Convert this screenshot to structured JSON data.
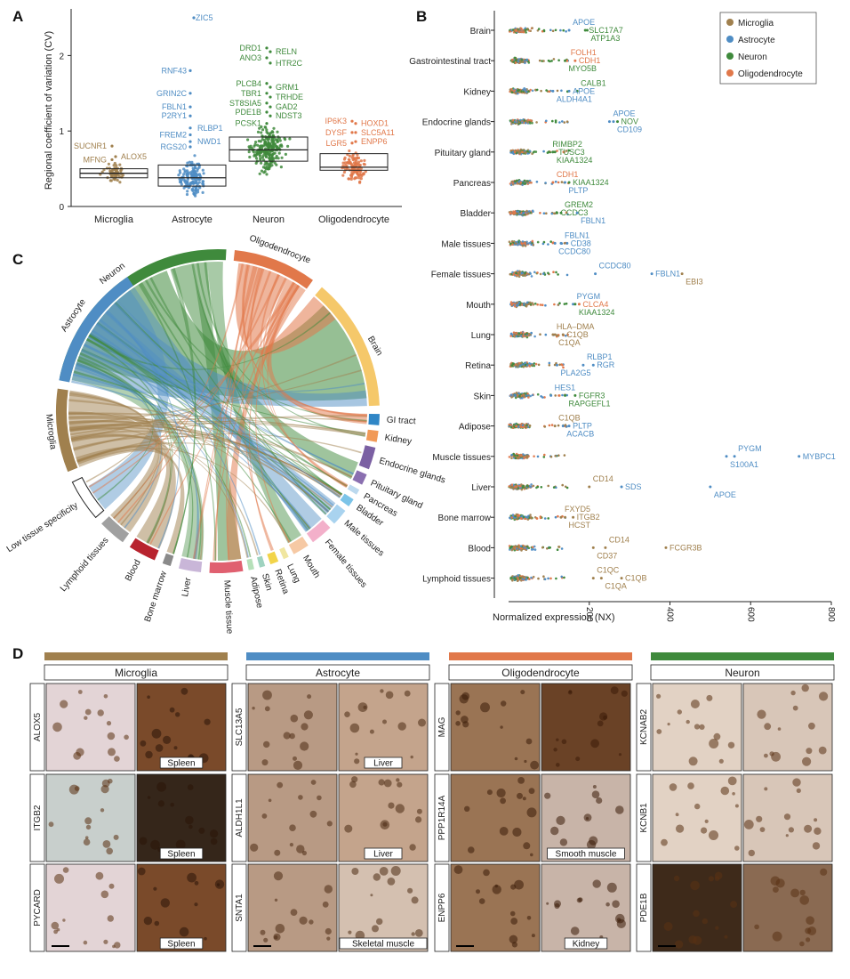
{
  "colors": {
    "Microglia": "#a0804e",
    "Astrocyte": "#4f8dc4",
    "Neuron": "#3f8a3c",
    "Oligodendrocyte": "#e1784a",
    "Brain": "#f5c86a",
    "GI tract": "#2f86c6",
    "Kidney": "#f19a58",
    "Endocrine glands": "#7b60a3",
    "Pituitary gland": "#8a6fb0",
    "Pancreas": "#bcd9ee",
    "Bladder": "#7cc4e8",
    "Male tissues": "#a9d3ef",
    "Female tissues": "#f3b0ca",
    "Mouth": "#f6c9a4",
    "Lung": "#f0e6a0",
    "Retina": "#f2d44a",
    "Skin": "#9fd3c0",
    "Adipose": "#b6e0b9",
    "Muscle tissue": "#e06070",
    "Liver": "#c9b6d8",
    "Bone marrow": "#8a8a8a",
    "Blood": "#b8232e",
    "Lymphoid tissues": "#a0a0a0"
  },
  "chart_data": [
    {
      "panel": "A",
      "type": "box",
      "ylabel": "Regional coefficient of variation (CV)",
      "ylim": [
        0,
        2.5
      ],
      "yticks": [
        "0",
        "1",
        "2"
      ],
      "categories": [
        "Microglia",
        "Astrocyte",
        "Neuron",
        "Oligodendrocyte"
      ],
      "boxes": [
        {
          "name": "Microglia",
          "q1": 0.38,
          "median": 0.44,
          "q3": 0.5,
          "labels": [
            {
              "text": "SUCNR1",
              "y": 0.8
            },
            {
              "text": "ALOX5",
              "y": 0.66
            },
            {
              "text": "MFNG",
              "y": 0.62
            }
          ]
        },
        {
          "name": "Astrocyte",
          "q1": 0.27,
          "median": 0.38,
          "q3": 0.55,
          "labels": [
            {
              "text": "ZIC5",
              "y": 2.5
            },
            {
              "text": "RNF43",
              "y": 1.8
            },
            {
              "text": "GRIN2C",
              "y": 1.5
            },
            {
              "text": "FBLN1",
              "y": 1.32
            },
            {
              "text": "P2RY1",
              "y": 1.2
            },
            {
              "text": "RLBP1",
              "y": 1.04
            },
            {
              "text": "FREM2",
              "y": 0.95
            },
            {
              "text": "NWD1",
              "y": 0.86
            },
            {
              "text": "RGS20",
              "y": 0.79
            }
          ]
        },
        {
          "name": "Neuron",
          "q1": 0.6,
          "median": 0.75,
          "q3": 0.92,
          "labels": [
            {
              "text": "DRD1",
              "y": 2.1
            },
            {
              "text": "RELN",
              "y": 2.05
            },
            {
              "text": "ANO3",
              "y": 1.97
            },
            {
              "text": "HTR2C",
              "y": 1.9
            },
            {
              "text": "PLCB4",
              "y": 1.63
            },
            {
              "text": "GRM1",
              "y": 1.58
            },
            {
              "text": "TBR1",
              "y": 1.5
            },
            {
              "text": "TRHDE",
              "y": 1.45
            },
            {
              "text": "ST8SIA5",
              "y": 1.37
            },
            {
              "text": "GAD2",
              "y": 1.32
            },
            {
              "text": "PDE1B",
              "y": 1.25
            },
            {
              "text": "NDST3",
              "y": 1.2
            },
            {
              "text": "PCSK1",
              "y": 1.1
            }
          ]
        },
        {
          "name": "Oligodendrocyte",
          "q1": 0.48,
          "median": 0.52,
          "q3": 0.7,
          "labels": [
            {
              "text": "IP6K3",
              "y": 1.13
            },
            {
              "text": "HOXD1",
              "y": 1.1
            },
            {
              "text": "DYSF",
              "y": 0.98
            },
            {
              "text": "SLC5A11",
              "y": 0.98
            },
            {
              "text": "LGR5",
              "y": 0.84
            },
            {
              "text": "ENPP6",
              "y": 0.86
            }
          ]
        }
      ]
    },
    {
      "panel": "B",
      "type": "strip",
      "xlabel": "Normalized expression (NX)",
      "xticks": [
        "200",
        "400",
        "600",
        "800"
      ],
      "legend": [
        "Microglia",
        "Astrocyte",
        "Neuron",
        "Oligodendrocyte"
      ],
      "rows": [
        {
          "tissue": "Brain",
          "labels": [
            {
              "text": "APOE",
              "cell": "Astrocyte",
              "nx": 150
            },
            {
              "text": "SLC17A7",
              "cell": "Neuron",
              "nx": 190
            },
            {
              "text": "ATP1A3",
              "cell": "Neuron",
              "nx": 195
            }
          ]
        },
        {
          "tissue": "Gastrointestinal tract",
          "labels": [
            {
              "text": "FOLH1",
              "cell": "Oligodendrocyte",
              "nx": 145
            },
            {
              "text": "CDH1",
              "cell": "Oligodendrocyte",
              "nx": 165
            },
            {
              "text": "MYO5B",
              "cell": "Neuron",
              "nx": 140
            }
          ]
        },
        {
          "tissue": "Kidney",
          "labels": [
            {
              "text": "CALB1",
              "cell": "Neuron",
              "nx": 170
            },
            {
              "text": "APOE",
              "cell": "Astrocyte",
              "nx": 150
            },
            {
              "text": "ALDH4A1",
              "cell": "Astrocyte",
              "nx": 110
            }
          ]
        },
        {
          "tissue": "Endocrine glands",
          "labels": [
            {
              "text": "APOE",
              "cell": "Astrocyte",
              "nx": 250
            },
            {
              "text": "NOV",
              "cell": "Neuron",
              "nx": 270
            },
            {
              "text": "CD109",
              "cell": "Astrocyte",
              "nx": 260
            }
          ]
        },
        {
          "tissue": "Pituitary gland",
          "labels": [
            {
              "text": "RIMBP2",
              "cell": "Neuron",
              "nx": 100
            },
            {
              "text": "TUSC3",
              "cell": "Neuron",
              "nx": 115
            },
            {
              "text": "KIAA1324",
              "cell": "Neuron",
              "nx": 110
            }
          ]
        },
        {
          "tissue": "Pancreas",
          "labels": [
            {
              "text": "CDH1",
              "cell": "Oligodendrocyte",
              "nx": 110
            },
            {
              "text": "KIAA1324",
              "cell": "Neuron",
              "nx": 150
            },
            {
              "text": "PLTP",
              "cell": "Astrocyte",
              "nx": 140
            }
          ]
        },
        {
          "tissue": "Bladder",
          "labels": [
            {
              "text": "GREM2",
              "cell": "Neuron",
              "nx": 130
            },
            {
              "text": "CCDC3",
              "cell": "Neuron",
              "nx": 120
            },
            {
              "text": "FBLN1",
              "cell": "Astrocyte",
              "nx": 170
            }
          ]
        },
        {
          "tissue": "Male tissues",
          "labels": [
            {
              "text": "FBLN1",
              "cell": "Astrocyte",
              "nx": 130
            },
            {
              "text": "CD38",
              "cell": "Astrocyte",
              "nx": 145
            },
            {
              "text": "CCDC80",
              "cell": "Astrocyte",
              "nx": 115
            }
          ]
        },
        {
          "tissue": "Female tissues",
          "labels": [
            {
              "text": "CCDC80",
              "cell": "Astrocyte",
              "nx": 215
            },
            {
              "text": "FBLN1",
              "cell": "Astrocyte",
              "nx": 355
            },
            {
              "text": "EBI3",
              "cell": "Microglia",
              "nx": 430
            }
          ]
        },
        {
          "tissue": "Mouth",
          "labels": [
            {
              "text": "PYGM",
              "cell": "Astrocyte",
              "nx": 160
            },
            {
              "text": "CLCA4",
              "cell": "Oligodendrocyte",
              "nx": 175
            },
            {
              "text": "KIAA1324",
              "cell": "Neuron",
              "nx": 165
            }
          ]
        },
        {
          "tissue": "Lung",
          "labels": [
            {
              "text": "HLA–DMA",
              "cell": "Microglia",
              "nx": 110
            },
            {
              "text": "C1QB",
              "cell": "Microglia",
              "nx": 135
            },
            {
              "text": "C1QA",
              "cell": "Microglia",
              "nx": 115
            }
          ]
        },
        {
          "tissue": "Retina",
          "labels": [
            {
              "text": "RLBP1",
              "cell": "Astrocyte",
              "nx": 185
            },
            {
              "text": "RGR",
              "cell": "Astrocyte",
              "nx": 210
            },
            {
              "text": "PLA2G5",
              "cell": "Astrocyte",
              "nx": 120
            }
          ]
        },
        {
          "tissue": "Skin",
          "labels": [
            {
              "text": "HES1",
              "cell": "Astrocyte",
              "nx": 105
            },
            {
              "text": "FGFR3",
              "cell": "Neuron",
              "nx": 165
            },
            {
              "text": "RAPGEFL1",
              "cell": "Neuron",
              "nx": 140
            }
          ]
        },
        {
          "tissue": "Adipose",
          "labels": [
            {
              "text": "C1QB",
              "cell": "Microglia",
              "nx": 115
            },
            {
              "text": "PLTP",
              "cell": "Astrocyte",
              "nx": 150
            },
            {
              "text": "ACACB",
              "cell": "Astrocyte",
              "nx": 135
            }
          ]
        },
        {
          "tissue": "Muscle tissues",
          "labels": [
            {
              "text": "PYGM",
              "cell": "Astrocyte",
              "nx": 560
            },
            {
              "text": "MYBPC1",
              "cell": "Astrocyte",
              "nx": 720
            },
            {
              "text": "S100A1",
              "cell": "Astrocyte",
              "nx": 540
            }
          ]
        },
        {
          "tissue": "Liver",
          "labels": [
            {
              "text": "CD14",
              "cell": "Microglia",
              "nx": 200
            },
            {
              "text": "SDS",
              "cell": "Astrocyte",
              "nx": 280
            },
            {
              "text": "APOE",
              "cell": "Astrocyte",
              "nx": 500
            }
          ]
        },
        {
          "tissue": "Bone marrow",
          "labels": [
            {
              "text": "FXYD5",
              "cell": "Microglia",
              "nx": 130
            },
            {
              "text": "ITGB2",
              "cell": "Microglia",
              "nx": 160
            },
            {
              "text": "HCST",
              "cell": "Microglia",
              "nx": 140
            }
          ]
        },
        {
          "tissue": "Blood",
          "labels": [
            {
              "text": "CD14",
              "cell": "Microglia",
              "nx": 240
            },
            {
              "text": "FCGR3B",
              "cell": "Microglia",
              "nx": 390
            },
            {
              "text": "CD37",
              "cell": "Microglia",
              "nx": 210
            }
          ]
        },
        {
          "tissue": "Lymphoid tissues",
          "labels": [
            {
              "text": "C1QC",
              "cell": "Microglia",
              "nx": 210
            },
            {
              "text": "C1QB",
              "cell": "Microglia",
              "nx": 280
            },
            {
              "text": "C1QA",
              "cell": "Microglia",
              "nx": 230
            }
          ]
        }
      ]
    },
    {
      "panel": "C",
      "type": "chord",
      "cell_types": [
        "Neuron",
        "Oligodendrocyte",
        "Astrocyte",
        "Microglia"
      ],
      "tissues": [
        "Brain",
        "GI tract",
        "Kidney",
        "Endocrine glands",
        "Pituitary gland",
        "Pancreas",
        "Bladder",
        "Male tissues",
        "Female tissues",
        "Mouth",
        "Lung",
        "Retina",
        "Skin",
        "Adipose",
        "Muscle tissue",
        "Liver",
        "Bone marrow",
        "Blood",
        "Lymphoid tissues",
        "Low tissue specificity"
      ]
    }
  ],
  "panel_d": {
    "columns": [
      {
        "header": "Microglia",
        "color_key": "Microglia",
        "rows": [
          {
            "gene": "ALOX5",
            "tissue": "Spleen"
          },
          {
            "gene": "ITGB2",
            "tissue": "Spleen"
          },
          {
            "gene": "PYCARD",
            "tissue": "Spleen"
          }
        ]
      },
      {
        "header": "Astrocyte",
        "color_key": "Astrocyte",
        "rows": [
          {
            "gene": "SLC13A5",
            "tissue": "Liver"
          },
          {
            "gene": "ALDH1L1",
            "tissue": "Liver"
          },
          {
            "gene": "SNTA1",
            "tissue": "Skeletal muscle"
          }
        ]
      },
      {
        "header": "Oligodendrocyte",
        "color_key": "Oligodendrocyte",
        "rows": [
          {
            "gene": "MAG",
            "tissue": ""
          },
          {
            "gene": "PPP1R14A",
            "tissue": "Smooth muscle"
          },
          {
            "gene": "ENPP6",
            "tissue": "Kidney"
          }
        ]
      },
      {
        "header": "Neuron",
        "color_key": "Neuron",
        "rows": [
          {
            "gene": "KCNAB2",
            "tissue": ""
          },
          {
            "gene": "KCNB1",
            "tissue": ""
          },
          {
            "gene": "PDE1B",
            "tissue": ""
          }
        ]
      }
    ]
  },
  "panel_labels": {
    "a": "A",
    "b": "B",
    "c": "C",
    "d": "D"
  }
}
